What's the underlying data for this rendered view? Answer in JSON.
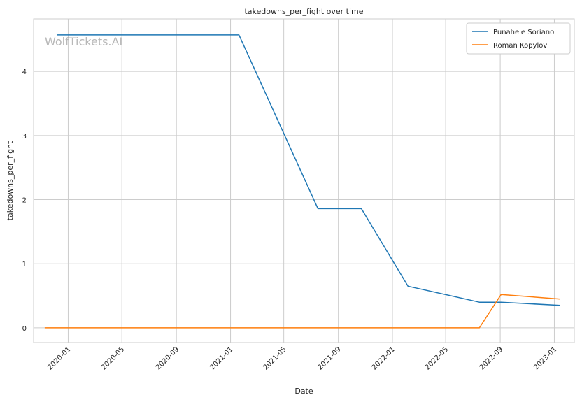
{
  "watermark": "WolfTickets.AI",
  "chart_data": {
    "type": "line",
    "title": "takedowns_per_fight over time",
    "xlabel": "Date",
    "ylabel": "takedowns_per_fight",
    "x_ticks": [
      "2020-01",
      "2020-05",
      "2020-09",
      "2021-01",
      "2021-05",
      "2021-09",
      "2022-01",
      "2022-05",
      "2022-09",
      "2023-01"
    ],
    "y_ticks": [
      0,
      1,
      2,
      3,
      4
    ],
    "xlim": [
      "2019-10-15",
      "2023-02-15"
    ],
    "ylim": [
      -0.23,
      4.82
    ],
    "grid": true,
    "legend_position": "top-right",
    "series": [
      {
        "name": "Punahele Soriano",
        "color": "#1f77b4",
        "points": [
          {
            "x": "2019-12-07",
            "y": 4.57
          },
          {
            "x": "2021-01-20",
            "y": 4.57
          },
          {
            "x": "2021-07-17",
            "y": 1.86
          },
          {
            "x": "2021-10-23",
            "y": 1.86
          },
          {
            "x": "2022-02-05",
            "y": 0.65
          },
          {
            "x": "2022-07-16",
            "y": 0.4
          },
          {
            "x": "2022-09-03",
            "y": 0.4
          },
          {
            "x": "2023-01-14",
            "y": 0.35
          }
        ]
      },
      {
        "name": "Roman Kopylov",
        "color": "#ff7f0e",
        "points": [
          {
            "x": "2019-11-09",
            "y": 0.0
          },
          {
            "x": "2022-07-16",
            "y": 0.0
          },
          {
            "x": "2022-09-03",
            "y": 0.52
          },
          {
            "x": "2023-01-14",
            "y": 0.45
          }
        ]
      }
    ]
  }
}
